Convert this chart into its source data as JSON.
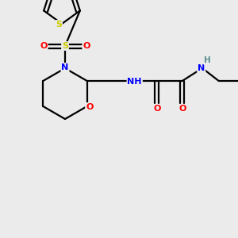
{
  "bg_color": "#ebebeb",
  "atom_colors": {
    "C": "#000000",
    "N": "#0000ff",
    "O": "#ff0000",
    "S": "#cccc00",
    "H": "#5a9090"
  },
  "bond_color": "#000000",
  "line_width": 1.6,
  "figsize": [
    3.0,
    3.0
  ],
  "dpi": 100
}
